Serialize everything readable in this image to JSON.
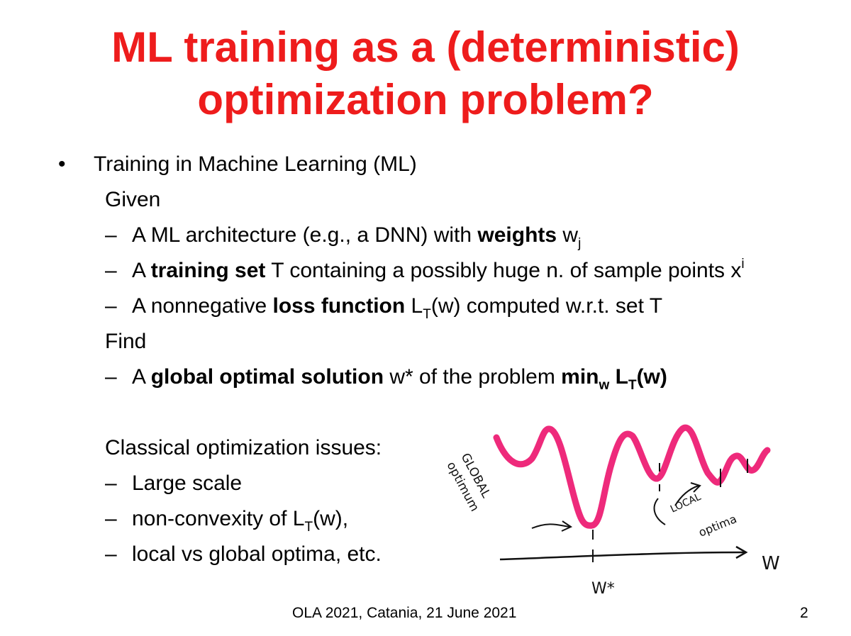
{
  "title": {
    "line1": "ML training as a (deterministic)",
    "line2": "optimization problem?"
  },
  "bullet": {
    "symbol": "•",
    "heading": "Training in Machine Learning (ML)"
  },
  "given": {
    "label": "Given",
    "items": [
      {
        "pre": "A ML architecture (e.g., a DNN) with ",
        "bold": "weights",
        "post": " w",
        "sub": "j"
      },
      {
        "pre": "A ",
        "bold": "training set",
        "post": " T containing a possibly huge n. of sample points x",
        "sup": "i"
      },
      {
        "pre": "A nonnegative ",
        "bold": "loss function",
        "post": " L",
        "sub": "T",
        "post2": "(w) computed w.r.t. set T"
      }
    ]
  },
  "find": {
    "label": "Find",
    "pre": "A ",
    "bold": "global optimal solution",
    "mid": " w* of the problem ",
    "min": "min",
    "min_sub": "w",
    "loss": " L",
    "loss_sub": "T",
    "loss_post": "(w)"
  },
  "issues": {
    "label": "Classical optimization issues:",
    "items": [
      {
        "text": "Large scale"
      },
      {
        "text": "non-convexity of L",
        "sub": "T",
        "post": "(w),"
      },
      {
        "text": "local vs global optima, etc."
      }
    ]
  },
  "sketch": {
    "global_label_1": "GLOBAL",
    "global_label_2": "optimum",
    "local_label_1": "LOCAL",
    "local_label_2": "optima",
    "axis_label": "W",
    "wstar_label": "W*",
    "curve_color": "#ee2a7b"
  },
  "footer": {
    "text": "OLA 2021, Catania, 21 June 2021",
    "page": "2"
  },
  "dash": "–"
}
